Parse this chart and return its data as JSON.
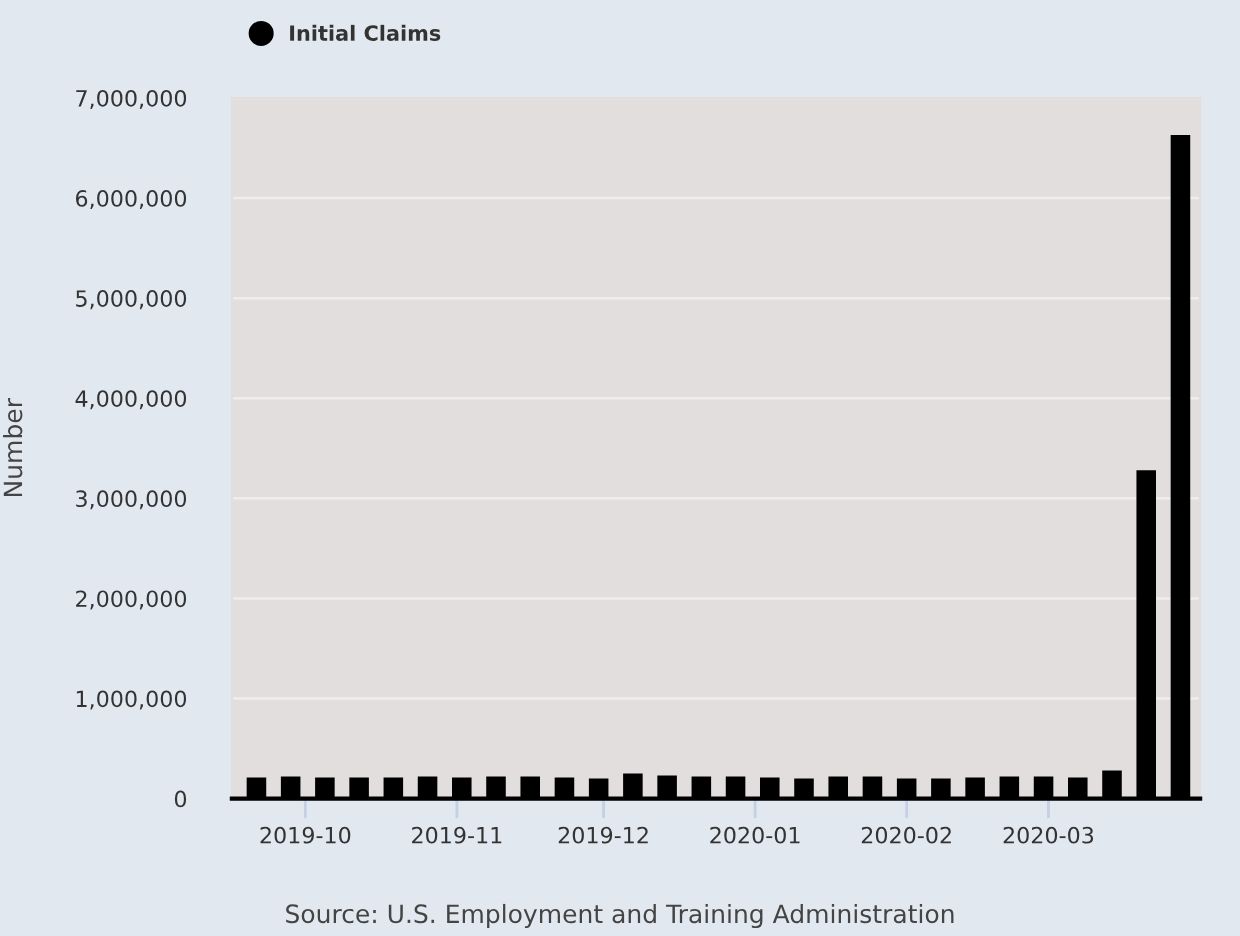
{
  "chart_data": {
    "type": "bar",
    "x": [
      "2019-09-21",
      "2019-09-28",
      "2019-10-05",
      "2019-10-12",
      "2019-10-19",
      "2019-10-26",
      "2019-11-02",
      "2019-11-09",
      "2019-11-16",
      "2019-11-23",
      "2019-11-30",
      "2019-12-07",
      "2019-12-14",
      "2019-12-21",
      "2019-12-28",
      "2020-01-04",
      "2020-01-11",
      "2020-01-18",
      "2020-01-25",
      "2020-02-01",
      "2020-02-08",
      "2020-02-15",
      "2020-02-22",
      "2020-02-29",
      "2020-03-07",
      "2020-03-14",
      "2020-03-21",
      "2020-03-28"
    ],
    "series": [
      {
        "name": "Initial Claims",
        "color": "#000000",
        "values": [
          210000,
          220000,
          210000,
          210000,
          210000,
          220000,
          210000,
          220000,
          220000,
          210000,
          200000,
          250000,
          230000,
          220000,
          220000,
          210000,
          200000,
          220000,
          220000,
          200000,
          200000,
          210000,
          220000,
          220000,
          210000,
          280000,
          3280000,
          6630000
        ]
      }
    ],
    "xlim": [
      "2019-09-16",
      "2020-04-01"
    ],
    "xticks": [
      "2019-10",
      "2019-11",
      "2019-12",
      "2020-01",
      "2020-02",
      "2020-03"
    ],
    "ylim": [
      0,
      7000000
    ],
    "yticks": [
      0,
      {
        "value": 1000000,
        "label": "1,000,000"
      },
      {
        "value": 2000000,
        "label": "2,000,000"
      },
      {
        "value": 3000000,
        "label": "3,000,000"
      },
      {
        "value": 4000000,
        "label": "4,000,000"
      },
      {
        "value": 5000000,
        "label": "5,000,000"
      },
      {
        "value": 6000000,
        "label": "6,000,000"
      },
      {
        "value": 7000000,
        "label": "7,000,000"
      }
    ],
    "ylabel": "Number",
    "grid": "y",
    "legend": "top left",
    "annotations": [
      "Source: U.S. Employment and Training Administration"
    ]
  }
}
